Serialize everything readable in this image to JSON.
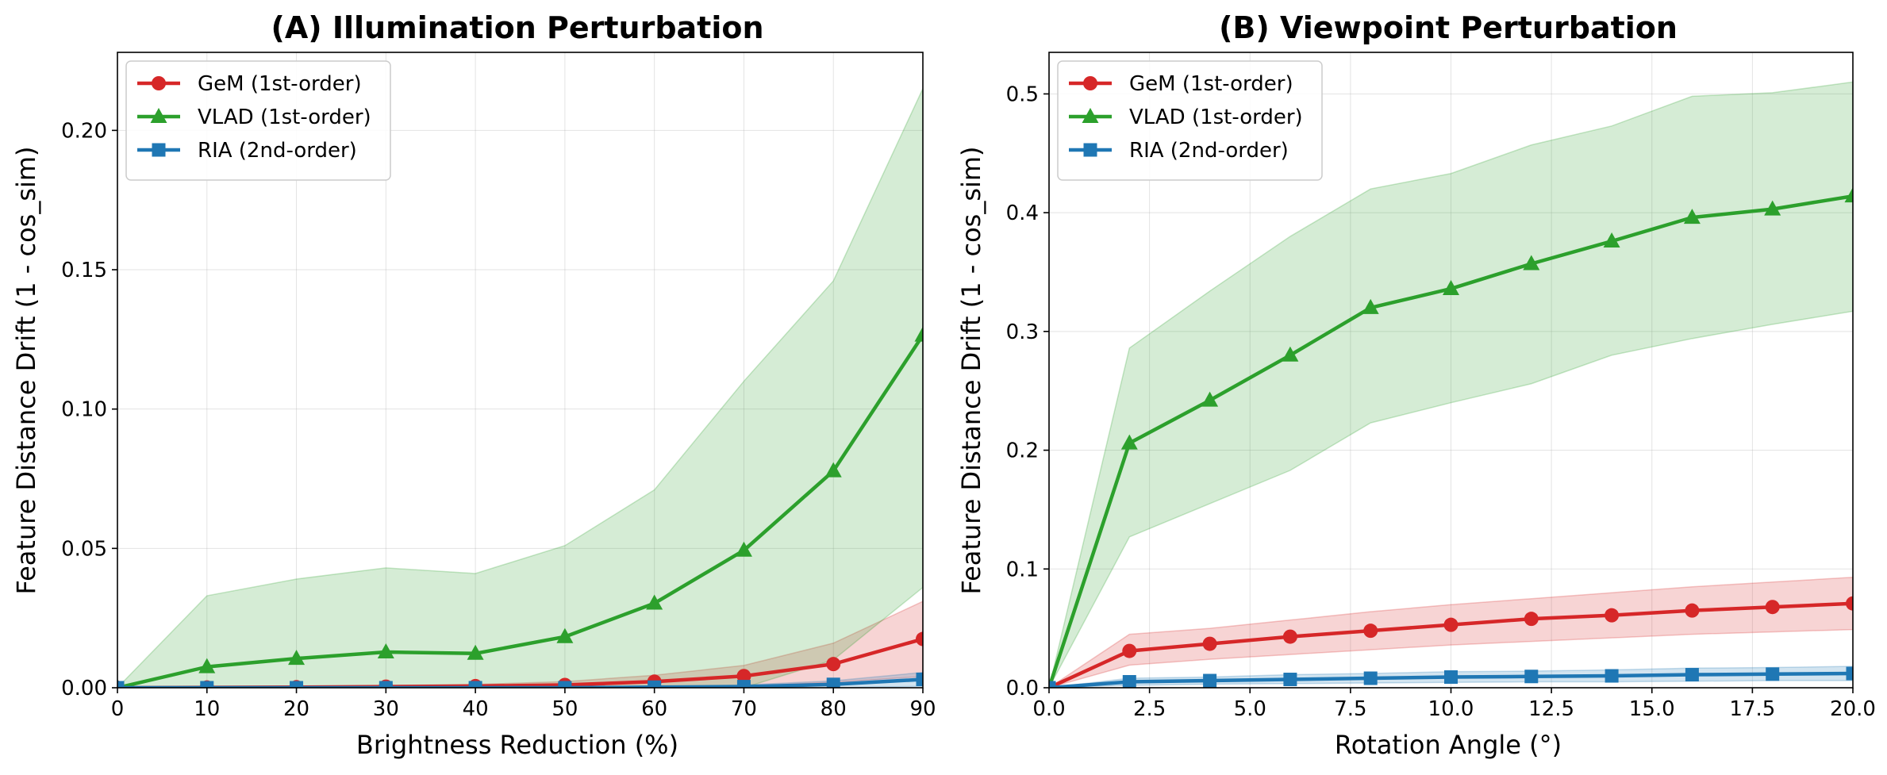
{
  "chart_data": [
    {
      "type": "line",
      "title": "(A) Illumination Perturbation",
      "xlabel": "Brightness Reduction (%)",
      "ylabel": "Feature Distance Drift (1 - cos_sim)",
      "xlim": [
        0,
        90
      ],
      "ylim": [
        0,
        0.228
      ],
      "xticks": [
        0,
        10,
        20,
        30,
        40,
        50,
        60,
        70,
        80,
        90
      ],
      "xtick_labels": [
        "0",
        "10",
        "20",
        "30",
        "40",
        "50",
        "60",
        "70",
        "80",
        "90"
      ],
      "yticks": [
        0,
        0.05,
        0.1,
        0.15,
        0.2
      ],
      "ytick_labels": [
        "0.00",
        "0.05",
        "0.10",
        "0.15",
        "0.20"
      ],
      "grid": true,
      "legend": "upper left",
      "x": [
        0,
        10,
        20,
        30,
        40,
        50,
        60,
        70,
        80,
        90
      ],
      "series": [
        {
          "name": "GeM (1st-order)",
          "color": "#d62728",
          "marker": "circle",
          "values": [
            0,
            0.0001,
            0.0002,
            0.0004,
            0.0006,
            0.001,
            0.0022,
            0.0042,
            0.0085,
            0.0175
          ],
          "lower": [
            0,
            0,
            0,
            0,
            0,
            0,
            0,
            0.0005,
            0.002,
            0.004
          ],
          "upper": [
            0,
            0.0003,
            0.0005,
            0.0008,
            0.0012,
            0.0022,
            0.0045,
            0.008,
            0.016,
            0.031
          ]
        },
        {
          "name": "VLAD (1st-order)",
          "color": "#2ca02c",
          "marker": "triangle",
          "values": [
            0,
            0.0075,
            0.0105,
            0.0128,
            0.0123,
            0.0183,
            0.0303,
            0.0493,
            0.0778,
            0.1265
          ],
          "lower": [
            0,
            0,
            0,
            0,
            0,
            0,
            0,
            0,
            0.01,
            0.036
          ],
          "upper": [
            0,
            0.033,
            0.039,
            0.043,
            0.041,
            0.051,
            0.071,
            0.11,
            0.146,
            0.215
          ]
        },
        {
          "name": "RIA (2nd-order)",
          "color": "#1f77b4",
          "marker": "square",
          "values": [
            0,
            0,
            0,
            0,
            0,
            0,
            0.0002,
            0.0004,
            0.0012,
            0.003
          ],
          "lower": [
            0,
            0,
            0,
            0,
            0,
            0,
            0,
            0,
            0,
            0.0005
          ],
          "upper": [
            0,
            0,
            0,
            0,
            0,
            0,
            0.0005,
            0.001,
            0.0025,
            0.0055
          ]
        }
      ]
    },
    {
      "type": "line",
      "title": "(B) Viewpoint Perturbation",
      "xlabel": "Rotation Angle (°)",
      "ylabel": "Feature Distance Drift (1 - cos_sim)",
      "xlim": [
        0,
        20
      ],
      "ylim": [
        0,
        0.535
      ],
      "xticks": [
        0,
        2.5,
        5,
        7.5,
        10,
        12.5,
        15,
        17.5,
        20
      ],
      "xtick_labels": [
        "0.0",
        "2.5",
        "5.0",
        "7.5",
        "10.0",
        "12.5",
        "15.0",
        "17.5",
        "20.0"
      ],
      "yticks": [
        0,
        0.1,
        0.2,
        0.3,
        0.4,
        0.5
      ],
      "ytick_labels": [
        "0.0",
        "0.1",
        "0.2",
        "0.3",
        "0.4",
        "0.5"
      ],
      "grid": true,
      "legend": "upper left",
      "x": [
        0,
        2,
        4,
        6,
        8,
        10,
        12,
        14,
        16,
        18,
        20
      ],
      "series": [
        {
          "name": "GeM (1st-order)",
          "color": "#d62728",
          "marker": "circle",
          "values": [
            0,
            0.031,
            0.037,
            0.043,
            0.048,
            0.053,
            0.058,
            0.061,
            0.065,
            0.068,
            0.071
          ],
          "lower": [
            0,
            0.019,
            0.024,
            0.028,
            0.032,
            0.036,
            0.039,
            0.042,
            0.045,
            0.047,
            0.049
          ],
          "upper": [
            0,
            0.045,
            0.05,
            0.057,
            0.064,
            0.07,
            0.075,
            0.08,
            0.085,
            0.089,
            0.093
          ]
        },
        {
          "name": "VLAD (1st-order)",
          "color": "#2ca02c",
          "marker": "triangle",
          "values": [
            0,
            0.206,
            0.242,
            0.28,
            0.32,
            0.336,
            0.357,
            0.376,
            0.396,
            0.403,
            0.414
          ],
          "lower": [
            0,
            0.127,
            0.155,
            0.183,
            0.223,
            0.24,
            0.256,
            0.28,
            0.294,
            0.306,
            0.317
          ],
          "upper": [
            0,
            0.286,
            0.334,
            0.38,
            0.42,
            0.433,
            0.457,
            0.473,
            0.498,
            0.501,
            0.51
          ]
        },
        {
          "name": "RIA (2nd-order)",
          "color": "#1f77b4",
          "marker": "square",
          "values": [
            0,
            0.005,
            0.006,
            0.007,
            0.008,
            0.009,
            0.0095,
            0.01,
            0.011,
            0.0115,
            0.012
          ],
          "lower": [
            0,
            0.002,
            0.003,
            0.0035,
            0.004,
            0.0045,
            0.005,
            0.005,
            0.0055,
            0.006,
            0.006
          ],
          "upper": [
            0,
            0.008,
            0.009,
            0.011,
            0.012,
            0.0135,
            0.014,
            0.015,
            0.0165,
            0.017,
            0.018
          ]
        }
      ]
    }
  ]
}
